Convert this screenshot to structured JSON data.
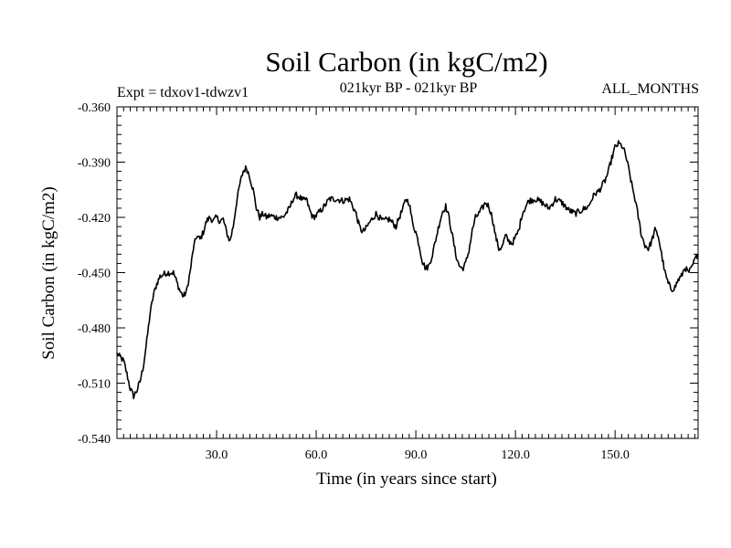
{
  "chart_data": {
    "type": "line",
    "title": "Soil Carbon (in kgC/m2)",
    "subtitle": "021kyr BP - 021kyr BP",
    "left_label": "Expt = tdxov1-tdwzv1",
    "right_label": "ALL_MONTHS",
    "xlabel": "Time (in years since start)",
    "ylabel": "Soil Carbon (in kgC/m2)",
    "xlim": [
      0,
      175
    ],
    "ylim": [
      -0.54,
      -0.36
    ],
    "x_ticks": [
      30,
      60,
      90,
      120,
      150
    ],
    "x_tick_labels": [
      "30.0",
      "60.0",
      "90.0",
      "120.0",
      "150.0"
    ],
    "y_ticks": [
      -0.36,
      -0.39,
      -0.42,
      -0.45,
      -0.48,
      -0.51,
      -0.54
    ],
    "y_tick_labels": [
      "-0.360",
      "-0.390",
      "-0.420",
      "-0.450",
      "-0.480",
      "-0.510",
      "-0.540"
    ],
    "grid": false,
    "series": [
      {
        "name": "Soil Carbon",
        "color": "#000000",
        "x": [
          0,
          2,
          3,
          4,
          5,
          6,
          7,
          8,
          9,
          10,
          11,
          12,
          13,
          15,
          17,
          18,
          19,
          20,
          21,
          22,
          23,
          24,
          25,
          26,
          27,
          28,
          29,
          30,
          31,
          32,
          33,
          34,
          35,
          36,
          37,
          38,
          39,
          40,
          41,
          42,
          43,
          44,
          45,
          46,
          48,
          50,
          52,
          53,
          54,
          55,
          56,
          57,
          58,
          59,
          60,
          62,
          64,
          66,
          68,
          70,
          71,
          72,
          73,
          74,
          75,
          76,
          78,
          80,
          82,
          84,
          85,
          86,
          87,
          88,
          89,
          90,
          91,
          92,
          93,
          94,
          95,
          96,
          97,
          98,
          99,
          100,
          101,
          102,
          103,
          104,
          105,
          106,
          107,
          108,
          109,
          110,
          111,
          112,
          113,
          114,
          115,
          116,
          117,
          118,
          119,
          120,
          121,
          122,
          124,
          126,
          128,
          130,
          131,
          132,
          134,
          136,
          138,
          140,
          141,
          142,
          143,
          144,
          145,
          146,
          147,
          148,
          149,
          150,
          151,
          152,
          153,
          154,
          155,
          156,
          157,
          158,
          159,
          160,
          161,
          162,
          163,
          164,
          165,
          166,
          167,
          168,
          169,
          170,
          171,
          172,
          173,
          174,
          175
        ],
        "y": [
          -0.494,
          -0.498,
          -0.505,
          -0.513,
          -0.517,
          -0.514,
          -0.509,
          -0.5,
          -0.487,
          -0.472,
          -0.462,
          -0.456,
          -0.452,
          -0.45,
          -0.45,
          -0.455,
          -0.46,
          -0.463,
          -0.46,
          -0.45,
          -0.437,
          -0.43,
          -0.432,
          -0.428,
          -0.422,
          -0.42,
          -0.422,
          -0.42,
          -0.422,
          -0.421,
          -0.428,
          -0.433,
          -0.425,
          -0.412,
          -0.402,
          -0.395,
          -0.393,
          -0.398,
          -0.405,
          -0.415,
          -0.42,
          -0.418,
          -0.42,
          -0.419,
          -0.42,
          -0.42,
          -0.415,
          -0.41,
          -0.408,
          -0.409,
          -0.411,
          -0.41,
          -0.416,
          -0.42,
          -0.419,
          -0.415,
          -0.41,
          -0.41,
          -0.411,
          -0.41,
          -0.414,
          -0.418,
          -0.425,
          -0.428,
          -0.426,
          -0.423,
          -0.418,
          -0.422,
          -0.421,
          -0.425,
          -0.42,
          -0.416,
          -0.41,
          -0.412,
          -0.423,
          -0.428,
          -0.435,
          -0.444,
          -0.448,
          -0.446,
          -0.44,
          -0.432,
          -0.424,
          -0.417,
          -0.414,
          -0.42,
          -0.43,
          -0.44,
          -0.446,
          -0.448,
          -0.445,
          -0.438,
          -0.427,
          -0.42,
          -0.418,
          -0.415,
          -0.412,
          -0.414,
          -0.42,
          -0.43,
          -0.437,
          -0.436,
          -0.43,
          -0.433,
          -0.434,
          -0.431,
          -0.427,
          -0.418,
          -0.411,
          -0.41,
          -0.412,
          -0.415,
          -0.413,
          -0.41,
          -0.412,
          -0.416,
          -0.418,
          -0.416,
          -0.415,
          -0.414,
          -0.41,
          -0.407,
          -0.406,
          -0.403,
          -0.4,
          -0.395,
          -0.388,
          -0.382,
          -0.38,
          -0.381,
          -0.385,
          -0.393,
          -0.402,
          -0.41,
          -0.42,
          -0.43,
          -0.435,
          -0.437,
          -0.433,
          -0.427,
          -0.43,
          -0.44,
          -0.45,
          -0.456,
          -0.459,
          -0.458,
          -0.454,
          -0.452,
          -0.447,
          -0.45,
          -0.448,
          -0.443,
          -0.44
        ]
      }
    ]
  }
}
